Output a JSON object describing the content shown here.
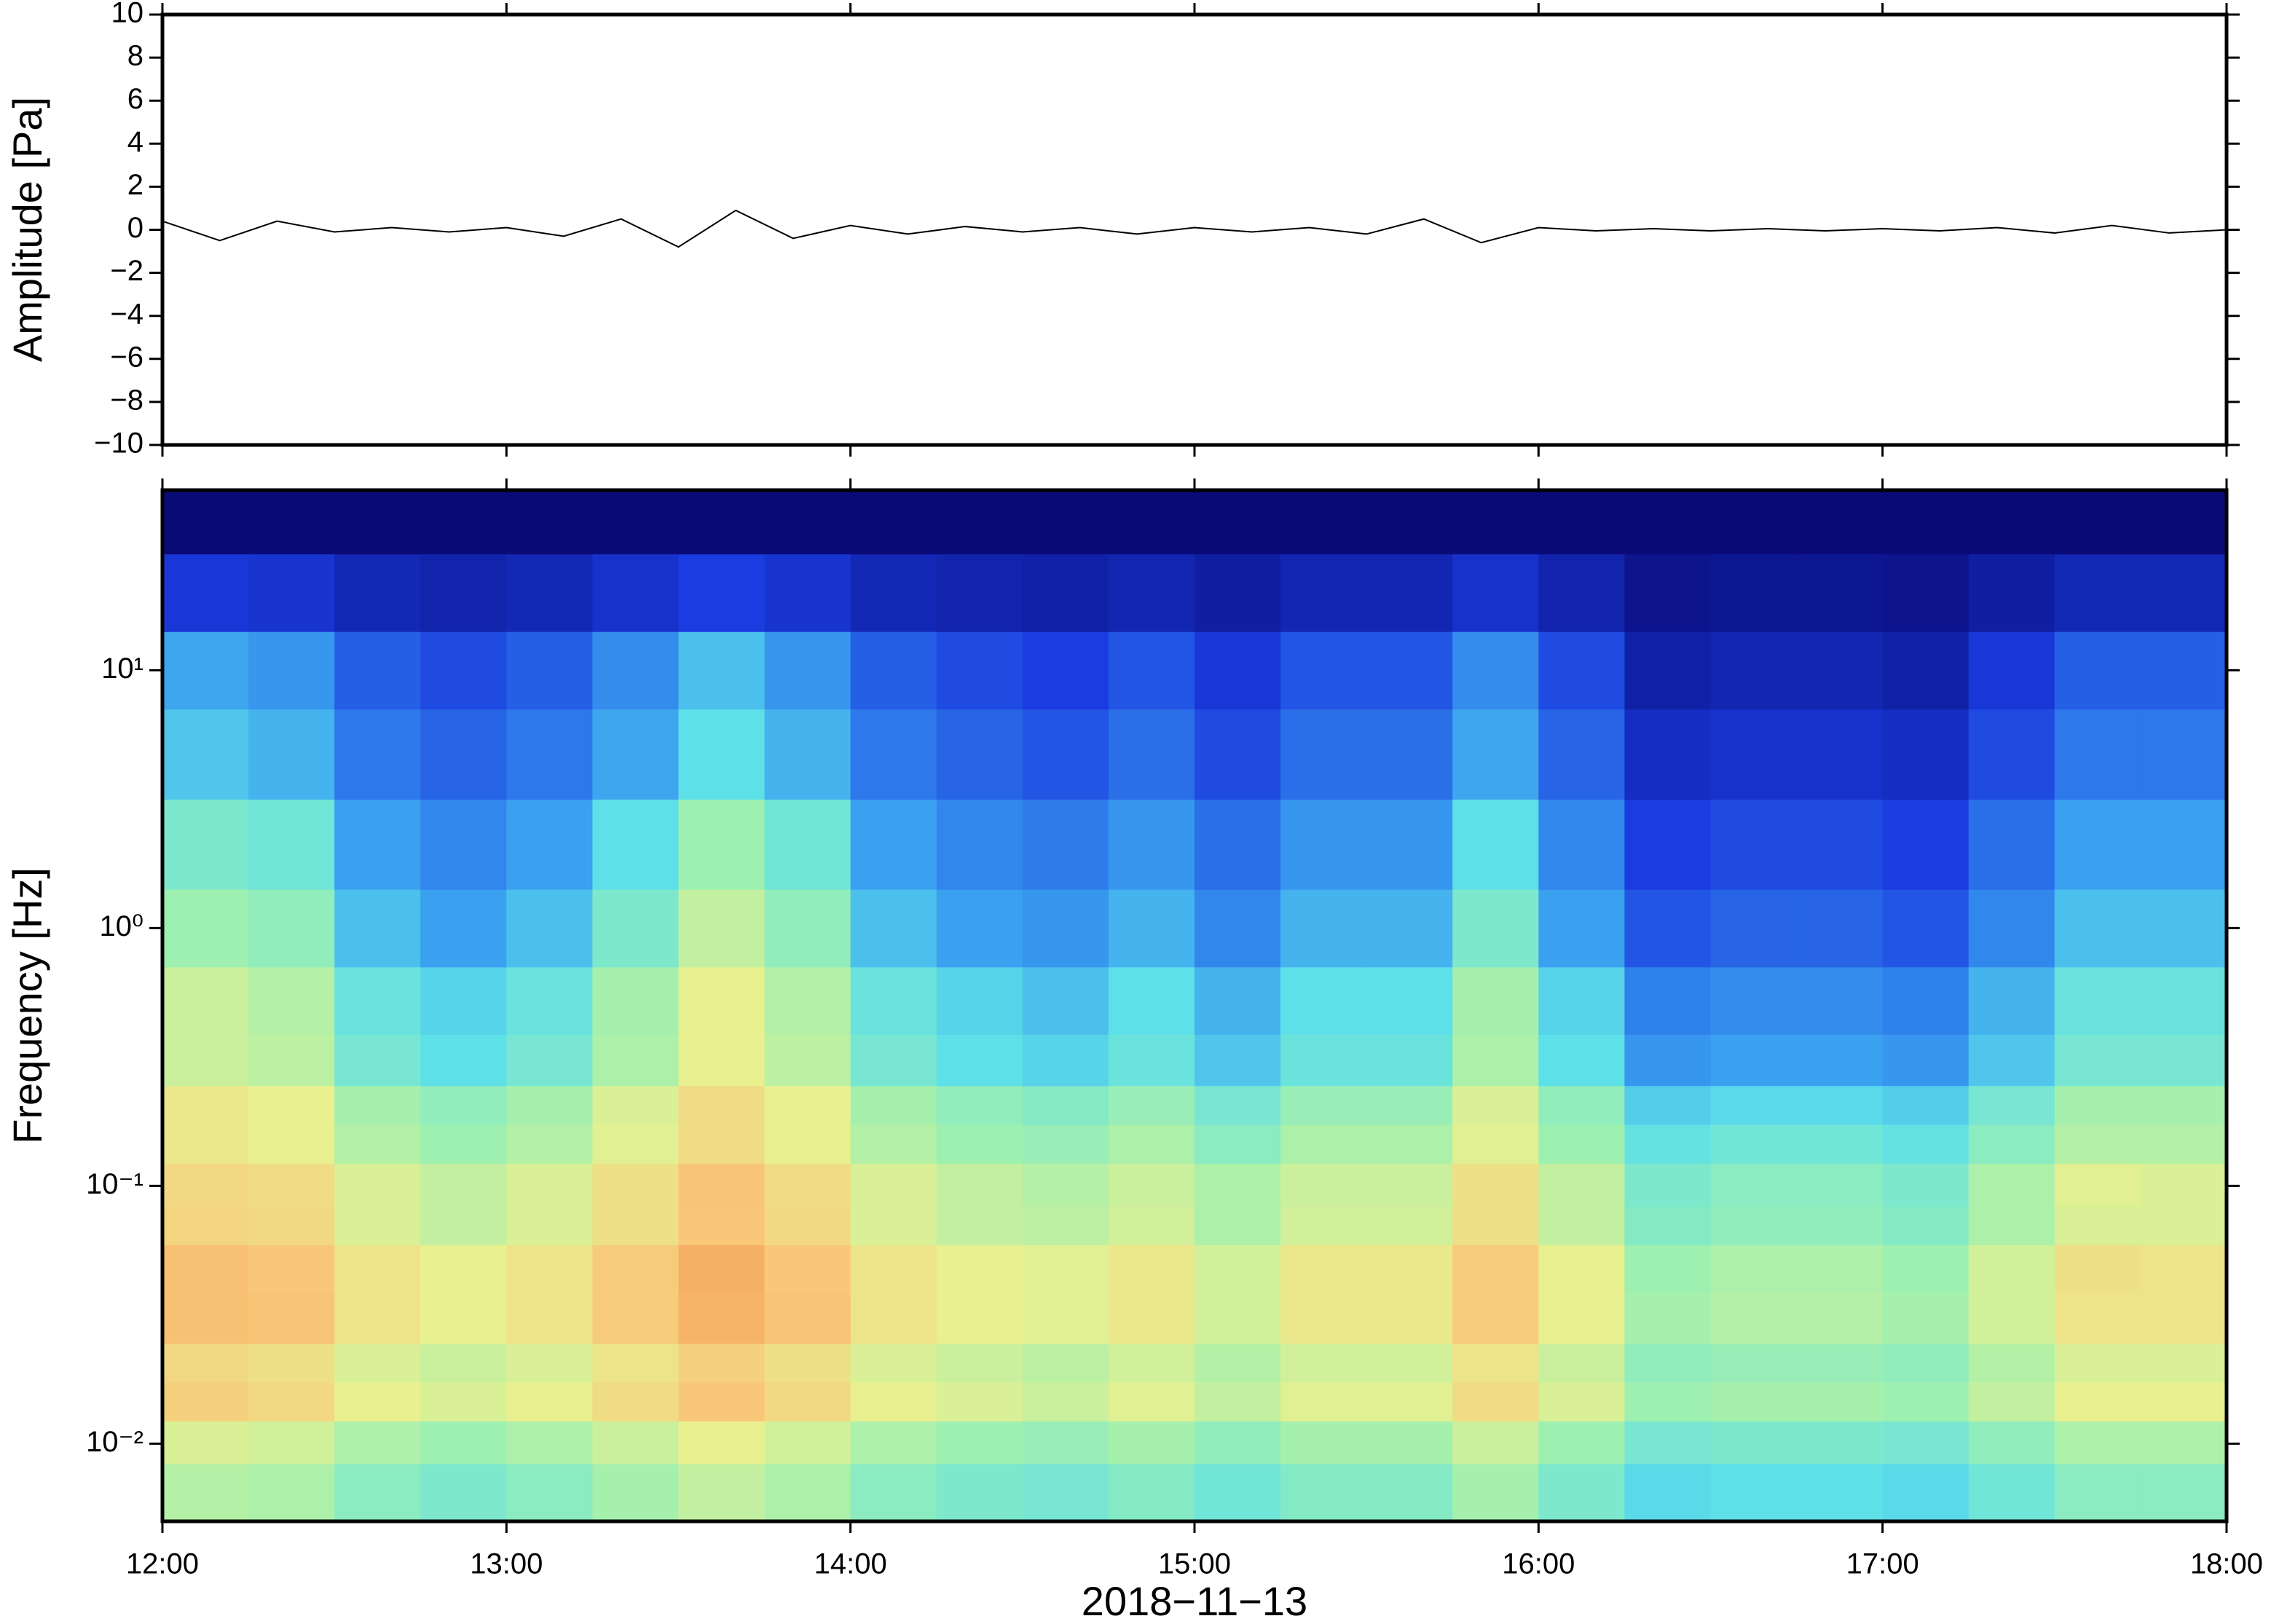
{
  "chart_data": [
    {
      "type": "line",
      "ylabel": "Amplitude [Pa]",
      "color": "#000000",
      "x": [
        "12:00",
        "12:10",
        "12:20",
        "12:30",
        "12:40",
        "12:50",
        "13:00",
        "13:10",
        "13:20",
        "13:30",
        "13:40",
        "13:50",
        "14:00",
        "14:10",
        "14:20",
        "14:30",
        "14:40",
        "14:50",
        "15:00",
        "15:10",
        "15:20",
        "15:30",
        "15:40",
        "15:50",
        "16:00",
        "16:10",
        "16:20",
        "16:30",
        "16:40",
        "16:50",
        "17:00",
        "17:10",
        "17:20",
        "17:30",
        "17:40",
        "17:50",
        "18:00"
      ],
      "values": [
        0.4,
        -0.5,
        0.4,
        -0.1,
        0.1,
        -0.1,
        0.1,
        -0.3,
        0.5,
        -0.8,
        0.9,
        -0.4,
        0.2,
        -0.2,
        0.15,
        -0.1,
        0.1,
        -0.2,
        0.1,
        -0.1,
        0.1,
        -0.2,
        0.5,
        -0.6,
        0.1,
        -0.05,
        0.05,
        -0.05,
        0.05,
        -0.05,
        0.05,
        -0.05,
        0.1,
        -0.15,
        0.2,
        -0.15,
        0
      ],
      "xlim": [
        "12:00",
        "18:00"
      ],
      "ylim": [
        -10,
        10
      ],
      "yticks": [
        {
          "value": -10,
          "label": "−10"
        },
        {
          "value": -8,
          "label": "−8"
        },
        {
          "value": -6,
          "label": "−6"
        },
        {
          "value": -4,
          "label": "−4"
        },
        {
          "value": -2,
          "label": "−2"
        },
        0,
        2,
        4,
        6,
        8,
        10
      ]
    },
    {
      "type": "heatmap",
      "ylabel": "Frequency [Hz]",
      "xlabel": "2018−11−13",
      "log_y": true,
      "x": [
        "12:00",
        "12:15",
        "12:30",
        "12:45",
        "13:00",
        "13:15",
        "13:30",
        "13:45",
        "14:00",
        "14:15",
        "14:30",
        "14:45",
        "15:00",
        "15:15",
        "15:30",
        "15:45",
        "16:00",
        "16:15",
        "16:30",
        "16:45",
        "17:00",
        "17:15",
        "17:30",
        "17:45"
      ],
      "y": [
        0.007,
        0.01,
        0.015,
        0.02,
        0.03,
        0.05,
        0.07,
        0.1,
        0.15,
        0.2,
        0.3,
        0.5,
        1,
        2,
        5,
        10,
        20,
        40
      ],
      "z": [
        [
          6.3,
          6.2,
          5.7,
          5.5,
          5.7,
          6.1,
          6.5,
          6.2,
          5.7,
          5.5,
          5.4,
          5.6,
          5.3,
          5.6,
          5.6,
          6.1,
          5.5,
          4.9,
          5,
          5,
          4.9,
          5.3,
          5.7,
          5.7
        ],
        [
          6.8,
          6.7,
          6.2,
          6,
          6.2,
          6.6,
          7,
          6.7,
          6.2,
          6,
          5.9,
          6.1,
          5.8,
          6.1,
          6.1,
          6.6,
          6,
          5.4,
          5.5,
          5.5,
          5.4,
          5.8,
          6.2,
          6.2
        ],
        [
          7.8,
          7.6,
          7,
          6.8,
          7,
          7.5,
          8,
          7.6,
          7,
          6.8,
          6.6,
          6.9,
          6.5,
          6.9,
          6.9,
          7.5,
          6.8,
          6,
          6.1,
          6.1,
          6,
          6.5,
          7,
          7
        ],
        [
          7.6,
          7.4,
          6.8,
          6.6,
          6.8,
          7.3,
          7.8,
          7.4,
          6.8,
          6.6,
          6.4,
          6.7,
          6.3,
          6.7,
          6.7,
          7.3,
          6.6,
          5.8,
          5.9,
          5.9,
          5.8,
          6.3,
          6.8,
          6.8
        ],
        [
          8.2,
          8.1,
          7.3,
          7,
          7.3,
          7.9,
          8.5,
          8.1,
          7.3,
          7,
          6.9,
          7.2,
          6.7,
          7.2,
          7.2,
          7.9,
          7,
          6.1,
          6.3,
          6.3,
          6.1,
          6.7,
          7.3,
          7.3
        ],
        [
          8.2,
          8,
          7.3,
          7,
          7.3,
          7.9,
          8.6,
          8,
          7.3,
          7,
          6.9,
          7.2,
          6.7,
          7.2,
          7.2,
          7.9,
          7,
          6,
          6.2,
          6.2,
          6,
          6.7,
          7.4,
          7.3
        ],
        [
          7.7,
          7.6,
          6.8,
          6.5,
          6.8,
          7.4,
          8,
          7.6,
          6.8,
          6.5,
          6.4,
          6.7,
          6.2,
          6.7,
          6.7,
          7.4,
          6.5,
          5.6,
          5.8,
          5.8,
          5.6,
          6.2,
          6.8,
          6.8
        ],
        [
          7.6,
          7.5,
          6.8,
          6.5,
          6.8,
          7.4,
          8.1,
          7.5,
          6.8,
          6.5,
          6.3,
          6.6,
          6.2,
          6.6,
          6.6,
          7.4,
          6.5,
          5.5,
          5.7,
          5.7,
          5.5,
          6.2,
          6.9,
          6.8
        ],
        [
          7.2,
          7,
          6.3,
          6,
          6.3,
          6.9,
          7.5,
          7,
          6.3,
          6,
          5.9,
          6.2,
          5.7,
          6.2,
          6.2,
          6.9,
          6,
          5.1,
          5.3,
          5.3,
          5.1,
          5.7,
          6.3,
          6.3
        ],
        [
          7.2,
          7,
          6.1,
          5.8,
          6.1,
          6.8,
          7.5,
          7,
          6.1,
          5.8,
          5.6,
          5.9,
          5.4,
          5.9,
          5.9,
          6.8,
          5.8,
          4.7,
          4.9,
          4.9,
          4.7,
          5.4,
          6.1,
          6.1
        ],
        [
          6.6,
          6.4,
          5.4,
          5,
          5.4,
          6.2,
          7,
          6.4,
          5.4,
          5,
          4.8,
          5.2,
          4.6,
          5.2,
          5.2,
          6.2,
          5,
          3.8,
          4,
          4,
          3.8,
          4.6,
          5.4,
          5.4
        ],
        [
          6.6,
          6.3,
          5.2,
          4.8,
          5.2,
          6.1,
          7,
          6.3,
          5.2,
          4.8,
          4.5,
          5,
          4.3,
          5,
          5,
          6.1,
          4.8,
          3.4,
          3.6,
          3.6,
          3.4,
          4.3,
          5.2,
          5.2
        ],
        [
          6,
          5.8,
          4.5,
          4,
          4.5,
          5.5,
          6.5,
          5.8,
          4.5,
          4,
          3.8,
          4.3,
          3.5,
          4.3,
          4.3,
          5.5,
          4,
          2.5,
          2.8,
          2.8,
          2.5,
          3.5,
          4.5,
          4.5
        ],
        [
          5.5,
          5.3,
          4,
          3.5,
          4,
          5,
          6,
          5.3,
          4,
          3.5,
          3.3,
          3.8,
          3,
          3.8,
          3.8,
          5,
          3.5,
          2,
          2.3,
          2.3,
          2,
          3,
          4,
          4
        ],
        [
          4.6,
          4.3,
          3.2,
          2.8,
          3.2,
          4.1,
          5,
          4.3,
          3.2,
          2.8,
          2.5,
          3,
          2.3,
          3,
          3,
          4.1,
          2.8,
          1.4,
          1.6,
          1.6,
          1.4,
          2.3,
          3.2,
          3.2
        ],
        [
          4.1,
          3.8,
          2.7,
          2.3,
          2.7,
          3.6,
          4.5,
          3.8,
          2.7,
          2.3,
          2,
          2.5,
          1.8,
          2.5,
          2.5,
          3.6,
          2.3,
          0.9,
          1.1,
          1.1,
          0.9,
          1.8,
          2.7,
          2.7
        ],
        [
          1.8,
          1.7,
          1.2,
          1,
          1.2,
          1.6,
          2,
          1.7,
          1.2,
          1,
          0.9,
          1.1,
          0.8,
          1.1,
          1.1,
          1.6,
          1,
          0.4,
          0.5,
          0.5,
          0.4,
          0.8,
          1.2,
          1.2
        ],
        [
          0,
          0,
          0,
          0,
          0,
          0,
          0,
          0,
          0,
          0,
          0,
          0,
          0,
          0,
          0,
          0,
          0,
          0,
          0,
          0,
          0,
          0,
          0,
          0
        ]
      ],
      "zlim": [
        0,
        10
      ],
      "colorscale": [
        [
          0,
          "#0a0a78"
        ],
        [
          2,
          "#1a3ce0"
        ],
        [
          4,
          "#3aa0f0"
        ],
        [
          5,
          "#5ee0e8"
        ],
        [
          6,
          "#9ef0b0"
        ],
        [
          7,
          "#e8f090"
        ],
        [
          8,
          "#f8c878"
        ],
        [
          10,
          "#f07838"
        ]
      ],
      "xlim": [
        "12:00",
        "18:00"
      ],
      "xticks": [
        "12:00",
        "13:00",
        "14:00",
        "15:00",
        "16:00",
        "17:00",
        "18:00"
      ],
      "ylim": [
        0.005,
        50
      ],
      "yticks": [
        {
          "value": 0.01,
          "label": "10⁻²"
        },
        {
          "value": 0.1,
          "label": "10⁻¹"
        },
        {
          "value": 1,
          "label": "10⁰"
        },
        {
          "value": 10,
          "label": "10¹"
        }
      ]
    }
  ]
}
